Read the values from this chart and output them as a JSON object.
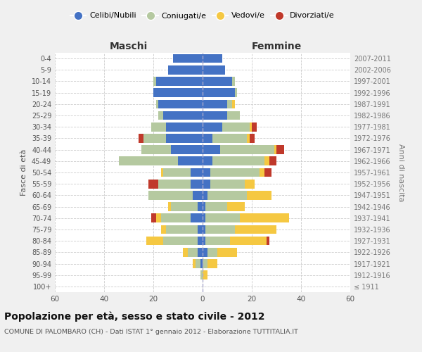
{
  "age_groups": [
    "100+",
    "95-99",
    "90-94",
    "85-89",
    "80-84",
    "75-79",
    "70-74",
    "65-69",
    "60-64",
    "55-59",
    "50-54",
    "45-49",
    "40-44",
    "35-39",
    "30-34",
    "25-29",
    "20-24",
    "15-19",
    "10-14",
    "5-9",
    "0-4"
  ],
  "birth_years": [
    "≤ 1911",
    "1912-1916",
    "1917-1921",
    "1922-1926",
    "1927-1931",
    "1932-1936",
    "1937-1941",
    "1942-1946",
    "1947-1951",
    "1952-1956",
    "1957-1961",
    "1962-1966",
    "1967-1971",
    "1972-1976",
    "1977-1981",
    "1982-1986",
    "1987-1991",
    "1992-1996",
    "1997-2001",
    "2002-2006",
    "2007-2011"
  ],
  "males": {
    "celibi": [
      0,
      0,
      1,
      2,
      2,
      2,
      5,
      2,
      4,
      5,
      5,
      10,
      13,
      15,
      15,
      16,
      18,
      20,
      19,
      14,
      12
    ],
    "coniugati": [
      0,
      1,
      2,
      4,
      14,
      13,
      12,
      11,
      18,
      13,
      11,
      24,
      12,
      9,
      6,
      2,
      1,
      0,
      1,
      0,
      0
    ],
    "vedovi": [
      0,
      0,
      1,
      2,
      7,
      2,
      2,
      1,
      0,
      0,
      1,
      0,
      0,
      0,
      0,
      0,
      0,
      0,
      0,
      0,
      0
    ],
    "divorziati": [
      0,
      0,
      0,
      0,
      0,
      0,
      2,
      0,
      0,
      4,
      0,
      0,
      0,
      2,
      0,
      0,
      0,
      0,
      0,
      0,
      0
    ]
  },
  "females": {
    "nubili": [
      0,
      0,
      0,
      2,
      1,
      1,
      1,
      1,
      2,
      3,
      3,
      4,
      7,
      4,
      8,
      10,
      10,
      13,
      12,
      9,
      8
    ],
    "coniugate": [
      0,
      0,
      2,
      4,
      10,
      12,
      14,
      9,
      16,
      14,
      20,
      21,
      22,
      14,
      11,
      5,
      2,
      1,
      1,
      0,
      0
    ],
    "vedove": [
      0,
      2,
      4,
      8,
      15,
      17,
      20,
      7,
      10,
      4,
      2,
      2,
      1,
      1,
      1,
      0,
      1,
      0,
      0,
      0,
      0
    ],
    "divorziate": [
      0,
      0,
      0,
      0,
      1,
      0,
      0,
      0,
      0,
      0,
      3,
      3,
      3,
      2,
      2,
      0,
      0,
      0,
      0,
      0,
      0
    ]
  },
  "colors": {
    "celibi": "#4472c4",
    "coniugati": "#b5c9a0",
    "vedovi": "#f5c842",
    "divorziati": "#c0392b"
  },
  "xlim": 60,
  "xlabel_left": "Maschi",
  "xlabel_right": "Femmine",
  "ylabel_left": "Fasce di età",
  "ylabel_right": "Anni di nascita",
  "title": "Popolazione per età, sesso e stato civile - 2012",
  "subtitle": "COMUNE DI PALOMBARO (CH) - Dati ISTAT 1° gennaio 2012 - Elaborazione TUTTITALIA.IT",
  "legend_labels": [
    "Celibi/Nubili",
    "Coniugati/e",
    "Vedovi/e",
    "Divorziati/e"
  ],
  "bg_color": "#f0f0f0",
  "plot_bg": "#ffffff"
}
